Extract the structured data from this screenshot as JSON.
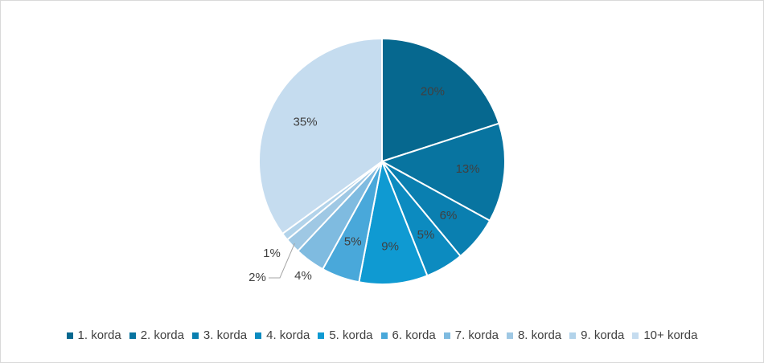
{
  "chart_data": {
    "type": "pie",
    "categories": [
      "1. korda",
      "2. korda",
      "3. korda",
      "4. korda",
      "5. korda",
      "6. korda",
      "7. korda",
      "8. korda",
      "9. korda",
      "10+ korda"
    ],
    "values": [
      20,
      13,
      6,
      5,
      9,
      5,
      4,
      2,
      1,
      35
    ],
    "labels": [
      "20%",
      "13%",
      "6%",
      "5%",
      "9%",
      "5%",
      "4%",
      "2%",
      "1%",
      "35%"
    ],
    "colors": [
      "#06688f",
      "#0874a0",
      "#0a7fb0",
      "#0c8bc0",
      "#0f9ad2",
      "#49a8da",
      "#7fbbe0",
      "#9fc8e4",
      "#b2d3ea",
      "#c5dcef"
    ],
    "legend_position": "bottom",
    "start_angle_deg": 0,
    "direction": "clockwise"
  }
}
